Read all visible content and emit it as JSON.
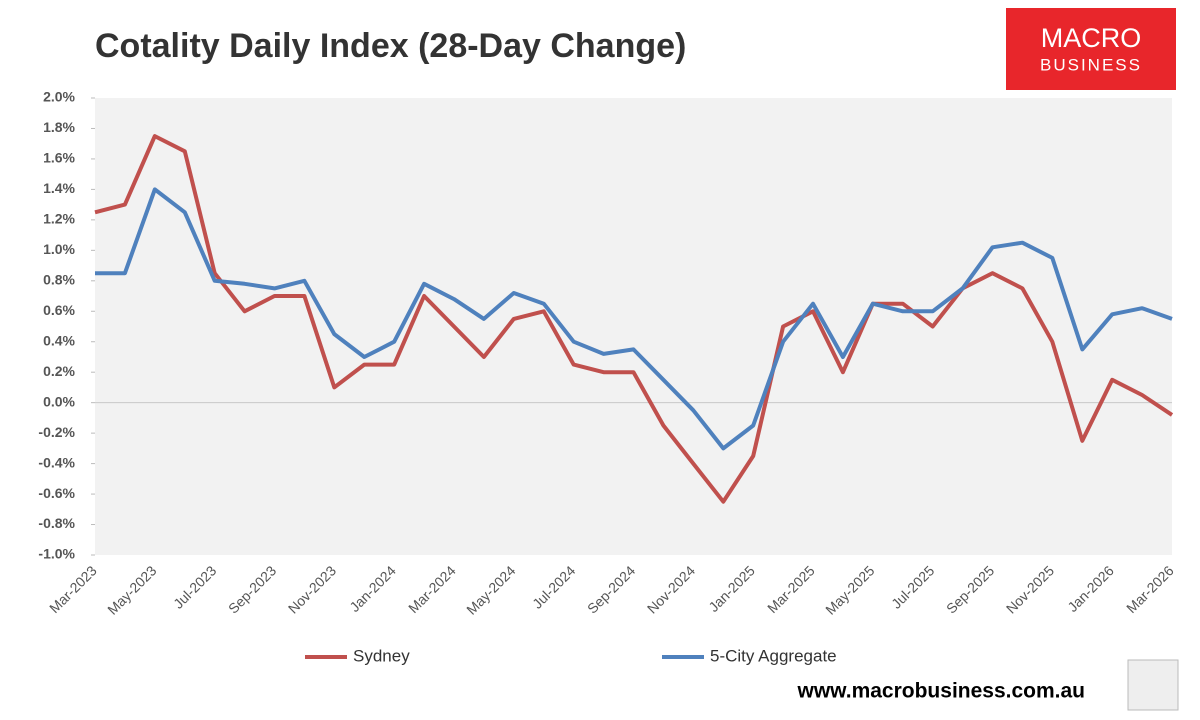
{
  "chart_data": {
    "type": "line",
    "title": "Cotality Daily Index (28-Day Change)",
    "logo": [
      "MACRO",
      "BUSINESS"
    ],
    "source": "www.macrobusiness.com.au",
    "categories": [
      "Mar-2023",
      null,
      "May-2023",
      null,
      "Jul-2023",
      null,
      "Sep-2023",
      null,
      "Nov-2023",
      null,
      "Jan-2024",
      null,
      "Mar-2024",
      null,
      "May-2024",
      null,
      "Jul-2024",
      null,
      "Sep-2024",
      null,
      "Nov-2024",
      null,
      "Jan-2025",
      null,
      "Mar-2025",
      null,
      "May-2025",
      null,
      "Jul-2025",
      null,
      "Sep-2025",
      null,
      "Nov-2025",
      null,
      "Jan-2026",
      null,
      "Mar-2026"
    ],
    "series": [
      {
        "name": "Sydney",
        "color": "#c0504d",
        "values": [
          1.25,
          1.3,
          1.75,
          1.65,
          0.85,
          0.6,
          0.7,
          0.7,
          0.1,
          0.25,
          0.25,
          0.7,
          0.5,
          0.3,
          0.55,
          0.6,
          0.25,
          0.2,
          0.2,
          -0.15,
          -0.4,
          -0.65,
          -0.35,
          0.5,
          0.6,
          0.2,
          0.65,
          0.65,
          0.5,
          0.75,
          0.85,
          0.75,
          0.4,
          -0.25,
          0.15,
          0.05,
          -0.08
        ]
      },
      {
        "name": "5-City Aggregate",
        "color": "#4f81bd",
        "values": [
          0.85,
          0.85,
          1.4,
          1.25,
          0.8,
          0.78,
          0.75,
          0.8,
          0.45,
          0.3,
          0.4,
          0.78,
          0.68,
          0.55,
          0.72,
          0.65,
          0.4,
          0.32,
          0.35,
          0.15,
          -0.05,
          -0.3,
          -0.15,
          0.4,
          0.65,
          0.3,
          0.65,
          0.6,
          0.6,
          0.75,
          1.02,
          1.05,
          0.95,
          0.35,
          0.58,
          0.62,
          0.55
        ]
      }
    ],
    "ylim": [
      -1.0,
      2.0
    ],
    "yticks": [
      {
        "value": -1.0,
        "label": "-1.0%"
      },
      {
        "value": -0.8,
        "label": "-0.8%"
      },
      {
        "value": -0.6,
        "label": "-0.6%"
      },
      {
        "value": -0.4,
        "label": "-0.4%"
      },
      {
        "value": -0.2,
        "label": "-0.2%"
      },
      {
        "value": 0.0,
        "label": "0.0%"
      },
      {
        "value": 0.2,
        "label": "0.2%"
      },
      {
        "value": 0.4,
        "label": "0.4%"
      },
      {
        "value": 0.6,
        "label": "0.6%"
      },
      {
        "value": 0.8,
        "label": "0.8%"
      },
      {
        "value": 1.0,
        "label": "1.0%"
      },
      {
        "value": 1.2,
        "label": "1.2%"
      },
      {
        "value": 1.4,
        "label": "1.4%"
      },
      {
        "value": 1.6,
        "label": "1.6%"
      },
      {
        "value": 1.8,
        "label": "1.8%"
      },
      {
        "value": 2.0,
        "label": "2.0%"
      }
    ],
    "grid": false,
    "legend": "bottom"
  }
}
